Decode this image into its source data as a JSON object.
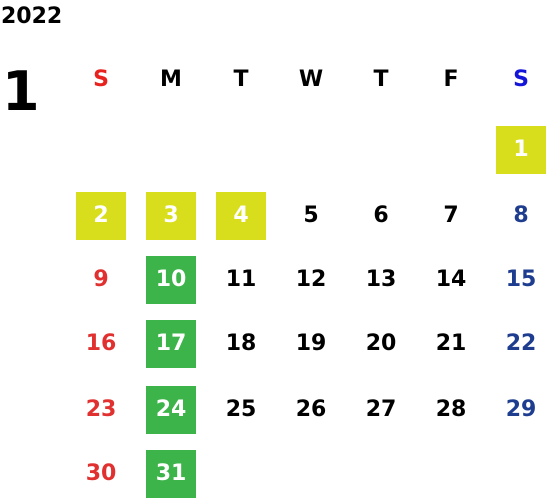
{
  "calendar": {
    "year": "2022",
    "month": "1",
    "weekdays": [
      "S",
      "M",
      "T",
      "W",
      "T",
      "F",
      "S"
    ],
    "weeks": [
      [
        null,
        null,
        null,
        null,
        null,
        null,
        {
          "day": "1",
          "highlight": "yellow"
        }
      ],
      [
        {
          "day": "2",
          "highlight": "yellow"
        },
        {
          "day": "3",
          "highlight": "yellow"
        },
        {
          "day": "4",
          "highlight": "yellow"
        },
        {
          "day": "5"
        },
        {
          "day": "6"
        },
        {
          "day": "7"
        },
        {
          "day": "8"
        }
      ],
      [
        {
          "day": "9"
        },
        {
          "day": "10",
          "highlight": "green"
        },
        {
          "day": "11"
        },
        {
          "day": "12"
        },
        {
          "day": "13"
        },
        {
          "day": "14"
        },
        {
          "day": "15"
        }
      ],
      [
        {
          "day": "16"
        },
        {
          "day": "17",
          "highlight": "green"
        },
        {
          "day": "18"
        },
        {
          "day": "19"
        },
        {
          "day": "20"
        },
        {
          "day": "21"
        },
        {
          "day": "22"
        }
      ],
      [
        {
          "day": "23"
        },
        {
          "day": "24",
          "highlight": "green"
        },
        {
          "day": "25"
        },
        {
          "day": "26"
        },
        {
          "day": "27"
        },
        {
          "day": "28"
        },
        {
          "day": "29"
        }
      ],
      [
        {
          "day": "30"
        },
        {
          "day": "31",
          "highlight": "green"
        },
        null,
        null,
        null,
        null,
        null
      ]
    ]
  },
  "colors": {
    "sunday_header": "#e8231f",
    "saturday_header": "#1515d9",
    "sunday": "#e03130",
    "saturday": "#1e3d8f",
    "highlight_yellow": "#d8de1c",
    "highlight_green": "#3cb44a"
  }
}
